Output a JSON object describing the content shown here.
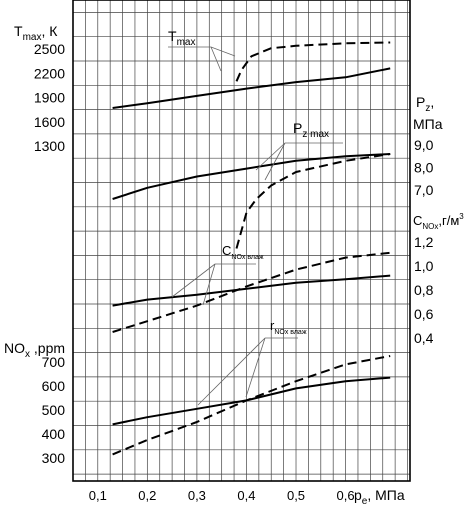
{
  "chart_data": {
    "type": "line",
    "x_axis": {
      "label": "p",
      "label_sub": "e",
      "label_unit": ", МПа",
      "ticks": [
        "0,1",
        "0,2",
        "0,3",
        "0,4",
        "0,5",
        "0,6"
      ],
      "tick_values": [
        0.1,
        0.2,
        0.3,
        0.4,
        0.5,
        0.6
      ],
      "range": [
        0.05,
        0.73
      ]
    },
    "panels": [
      {
        "id": "tmax",
        "left_axis": {
          "label": "T",
          "label_sub": "max",
          "label_unit": ", К",
          "ticks": [
            "1300",
            "1600",
            "1900",
            "2200",
            "2500"
          ],
          "tick_values": [
            1300,
            1600,
            1900,
            2200,
            2500
          ],
          "range": [
            1300,
            2700
          ]
        },
        "annotation": {
          "text": "T",
          "sub": "max"
        },
        "series": [
          {
            "style": "solid",
            "x": [
              0.13,
              0.2,
              0.3,
              0.4,
              0.5,
              0.6,
              0.69
            ],
            "y": [
              1770,
              1830,
              1920,
              2010,
              2090,
              2150,
              2260
            ]
          },
          {
            "style": "dashed",
            "x": [
              0.38,
              0.39,
              0.41,
              0.45,
              0.5,
              0.6,
              0.69
            ],
            "y": [
              2100,
              2240,
              2410,
              2510,
              2540,
              2570,
              2580
            ]
          }
        ]
      },
      {
        "id": "pz",
        "right_axis": {
          "label": "P",
          "label_sub": "z",
          "label_unit": ",",
          "label_line2": "МПа",
          "ticks": [
            "7,0",
            "8,0",
            "9,0"
          ],
          "tick_values": [
            7.0,
            8.0,
            9.0
          ]
        },
        "annotation": {
          "text": "P",
          "sub": "z max"
        },
        "series": [
          {
            "style": "solid",
            "x": [
              0.13,
              0.2,
              0.3,
              0.4,
              0.5,
              0.6,
              0.69
            ],
            "y": [
              6.6,
              7.1,
              7.6,
              7.95,
              8.3,
              8.5,
              8.6
            ]
          },
          {
            "style": "dashed",
            "x": [
              0.38,
              0.4,
              0.42,
              0.45,
              0.5,
              0.6,
              0.69
            ],
            "y": [
              4.4,
              6.0,
              6.6,
              7.2,
              7.8,
              8.3,
              8.6
            ]
          }
        ]
      },
      {
        "id": "cnox",
        "right_axis": {
          "label": "C",
          "label_sub": "NOx",
          "label_unit": ",г/м",
          "label_sup": "3",
          "ticks": [
            "0,4",
            "0,6",
            "0,8",
            "1,0",
            "1,2"
          ],
          "tick_values": [
            0.4,
            0.6,
            0.8,
            1.0,
            1.2
          ]
        },
        "annotation": {
          "text": "C",
          "sub": "NOx влаж"
        },
        "series": [
          {
            "style": "solid",
            "x": [
              0.13,
              0.2,
              0.3,
              0.4,
              0.5,
              0.6,
              0.69
            ],
            "y": [
              0.67,
              0.72,
              0.76,
              0.81,
              0.86,
              0.89,
              0.92
            ]
          },
          {
            "style": "dashed",
            "x": [
              0.13,
              0.2,
              0.3,
              0.4,
              0.5,
              0.6,
              0.69
            ],
            "y": [
              0.45,
              0.54,
              0.67,
              0.83,
              0.97,
              1.07,
              1.11
            ]
          }
        ]
      },
      {
        "id": "nox",
        "left_axis": {
          "label": "NO",
          "label_sub": "x",
          "label_unit": " ,ppm",
          "ticks": [
            "300",
            "400",
            "500",
            "600",
            "700"
          ],
          "tick_values": [
            300,
            400,
            500,
            600,
            700
          ],
          "range": [
            200,
            800
          ]
        },
        "annotation": {
          "text": "r",
          "sub": "NOx влаж"
        },
        "series": [
          {
            "style": "solid",
            "x": [
              0.13,
              0.2,
              0.3,
              0.4,
              0.5,
              0.6,
              0.69
            ],
            "y": [
              440,
              470,
              505,
              540,
              590,
              620,
              635
            ]
          },
          {
            "style": "dashed",
            "x": [
              0.13,
              0.2,
              0.3,
              0.4,
              0.5,
              0.6,
              0.69
            ],
            "y": [
              315,
              375,
              450,
              540,
              620,
              690,
              725
            ]
          }
        ]
      }
    ]
  }
}
